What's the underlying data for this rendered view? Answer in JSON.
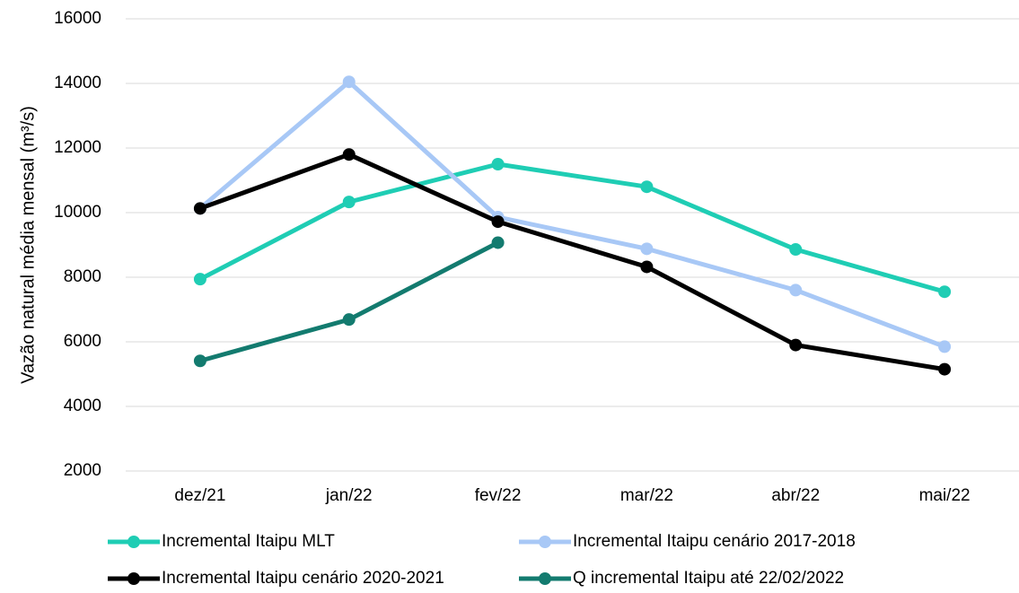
{
  "chart_data": {
    "type": "line",
    "y_label": "Vazão natural média mensal (m³/s)",
    "categories": [
      "dez/21",
      "jan/22",
      "fev/22",
      "mar/22",
      "abr/22",
      "mai/22"
    ],
    "series": [
      {
        "name": "Incremental Itaipu MLT",
        "color": "#1fcdb4",
        "values": [
          7940,
          10330,
          11500,
          10800,
          8860,
          7550
        ]
      },
      {
        "name": "Incremental Itaipu cenário 2017-2018",
        "color": "#a8c8f6",
        "values": [
          10130,
          14050,
          9860,
          8880,
          7600,
          5850
        ]
      },
      {
        "name": "Incremental Itaipu cenário 2020-2021",
        "color": "#000000",
        "values": [
          10130,
          11800,
          9720,
          8320,
          5900,
          5150
        ]
      },
      {
        "name": "Q incremental Itaipu até 22/02/2022",
        "color": "#137b6f",
        "values": [
          5410,
          6690,
          9070,
          null,
          null,
          null
        ]
      }
    ],
    "ylim": [
      2000,
      16000
    ],
    "yticks": [
      2000,
      4000,
      6000,
      8000,
      10000,
      12000,
      14000,
      16000
    ],
    "grid": true
  }
}
